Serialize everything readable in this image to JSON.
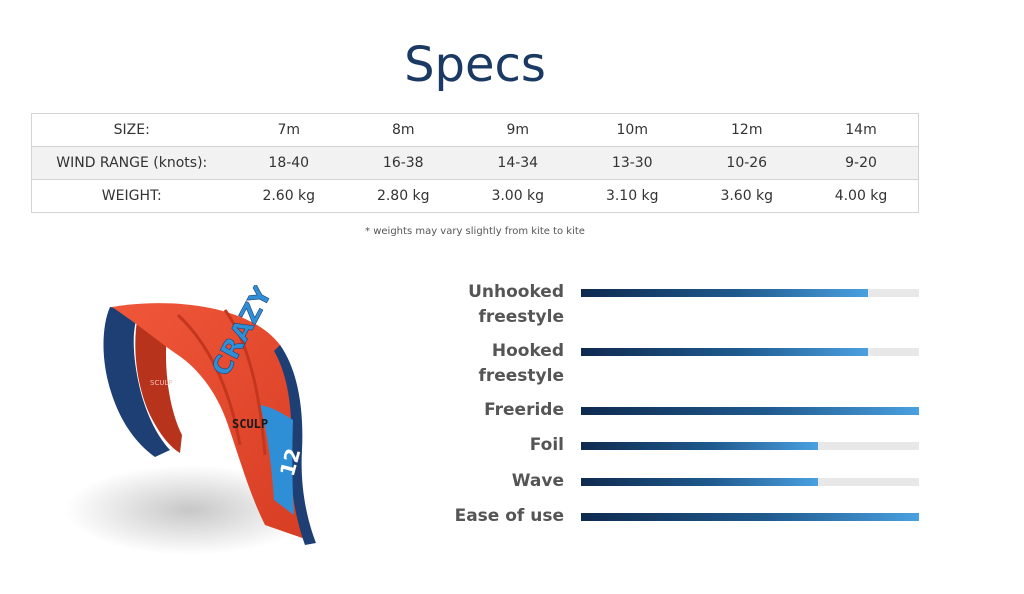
{
  "page": {
    "title": "Specs",
    "footnote": "* weights may vary slightly from kite to kite"
  },
  "specs": {
    "rows": [
      {
        "label": "SIZE:",
        "values": [
          "7m",
          "8m",
          "9m",
          "10m",
          "12m",
          "14m"
        ]
      },
      {
        "label": "WIND RANGE (knots):",
        "values": [
          "18-40",
          "16-38",
          "14-34",
          "13-30",
          "10-26",
          "9-20"
        ]
      },
      {
        "label": "WEIGHT:",
        "values": [
          "2.60 kg",
          "2.80 kg",
          "3.00 kg",
          "3.10 kg",
          "3.60 kg",
          "4.00 kg"
        ]
      }
    ]
  },
  "kite": {
    "brand_text": "CRAZY",
    "model_text": "SCULP",
    "size_text": "12",
    "small_text": "SCULP",
    "colors": {
      "canopy": "#e0452a",
      "edge": "#1e3f73",
      "accent": "#2f8fd6"
    }
  },
  "ratings": {
    "colors": {
      "start": "#0f2a4f",
      "end": "#4aa0e0",
      "track": "#e8e8e8"
    },
    "items": [
      {
        "label_lines": [
          "Unhooked",
          "freestyle"
        ],
        "value": 0.85
      },
      {
        "label_lines": [
          "Hooked",
          "freestyle"
        ],
        "value": 0.85
      },
      {
        "label_lines": [
          "Freeride"
        ],
        "value": 1.0
      },
      {
        "label_lines": [
          "Foil"
        ],
        "value": 0.7
      },
      {
        "label_lines": [
          "Wave"
        ],
        "value": 0.7
      },
      {
        "label_lines": [
          "Ease of use"
        ],
        "value": 1.0
      }
    ]
  }
}
